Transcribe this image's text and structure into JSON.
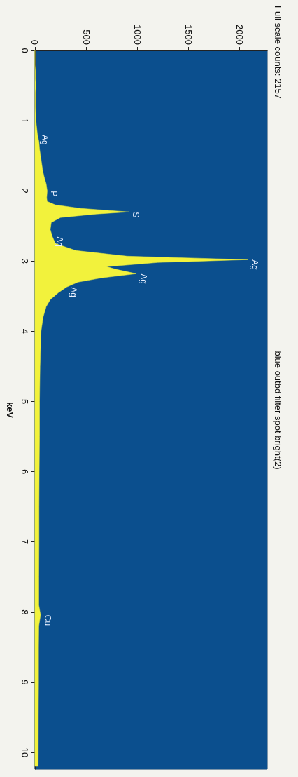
{
  "chart_data": {
    "type": "area",
    "orientation": "horizontal",
    "title": "blue outbd filter spot bright(2)",
    "ylabel": "keV",
    "annotations": [
      "Full scale counts: 2157",
      {
        "text": "Ag",
        "x": 25,
        "y": 1.2
      },
      {
        "text": "P",
        "x": 120,
        "y": 2.0
      },
      {
        "text": "S",
        "x": 920,
        "y": 2.3
      },
      {
        "text": "Ag",
        "x": 170,
        "y": 2.65
      },
      {
        "text": "Ag",
        "x": 2080,
        "y": 2.98
      },
      {
        "text": "Ag",
        "x": 990,
        "y": 3.18
      },
      {
        "text": "Ag",
        "x": 310,
        "y": 3.37
      },
      {
        "text": "Cu",
        "x": 55,
        "y": 8.04
      }
    ],
    "x": [
      0,
      0.1,
      0.2,
      0.3,
      0.4,
      0.5,
      0.6,
      0.8,
      1.0,
      1.2,
      1.3,
      1.4,
      1.5,
      1.6,
      1.7,
      1.8,
      1.9,
      2.0,
      2.1,
      2.15,
      2.2,
      2.25,
      2.3,
      2.33,
      2.38,
      2.45,
      2.55,
      2.65,
      2.75,
      2.85,
      2.93,
      2.98,
      3.02,
      3.08,
      3.12,
      3.18,
      3.24,
      3.3,
      3.37,
      3.45,
      3.55,
      3.65,
      3.8,
      4.0,
      4.5,
      5.0,
      5.5,
      6.0,
      6.5,
      7.0,
      7.5,
      7.9,
      8.04,
      8.2,
      8.5,
      9.0,
      9.5,
      10.0,
      10.2
    ],
    "series": [
      {
        "color": "#f2f23c",
        "values": [
          0,
          0,
          0,
          5,
          5,
          10,
          5,
          5,
          10,
          25,
          40,
          45,
          55,
          65,
          75,
          90,
          110,
          120,
          115,
          120,
          200,
          450,
          920,
          600,
          250,
          160,
          150,
          170,
          200,
          400,
          900,
          2080,
          1200,
          700,
          800,
          990,
          650,
          420,
          310,
          230,
          150,
          110,
          80,
          60,
          50,
          45,
          45,
          42,
          40,
          40,
          38,
          38,
          55,
          38,
          36,
          36,
          34,
          33,
          32
        ]
      }
    ],
    "ylim": [
      10.24,
      0
    ],
    "yticks": [
      0,
      1,
      2,
      3,
      4,
      5,
      6,
      7,
      8,
      9,
      10
    ],
    "xlim": [
      0,
      2270
    ],
    "xticks": [
      0,
      500,
      1000,
      1500,
      2000
    ],
    "grid": false
  }
}
